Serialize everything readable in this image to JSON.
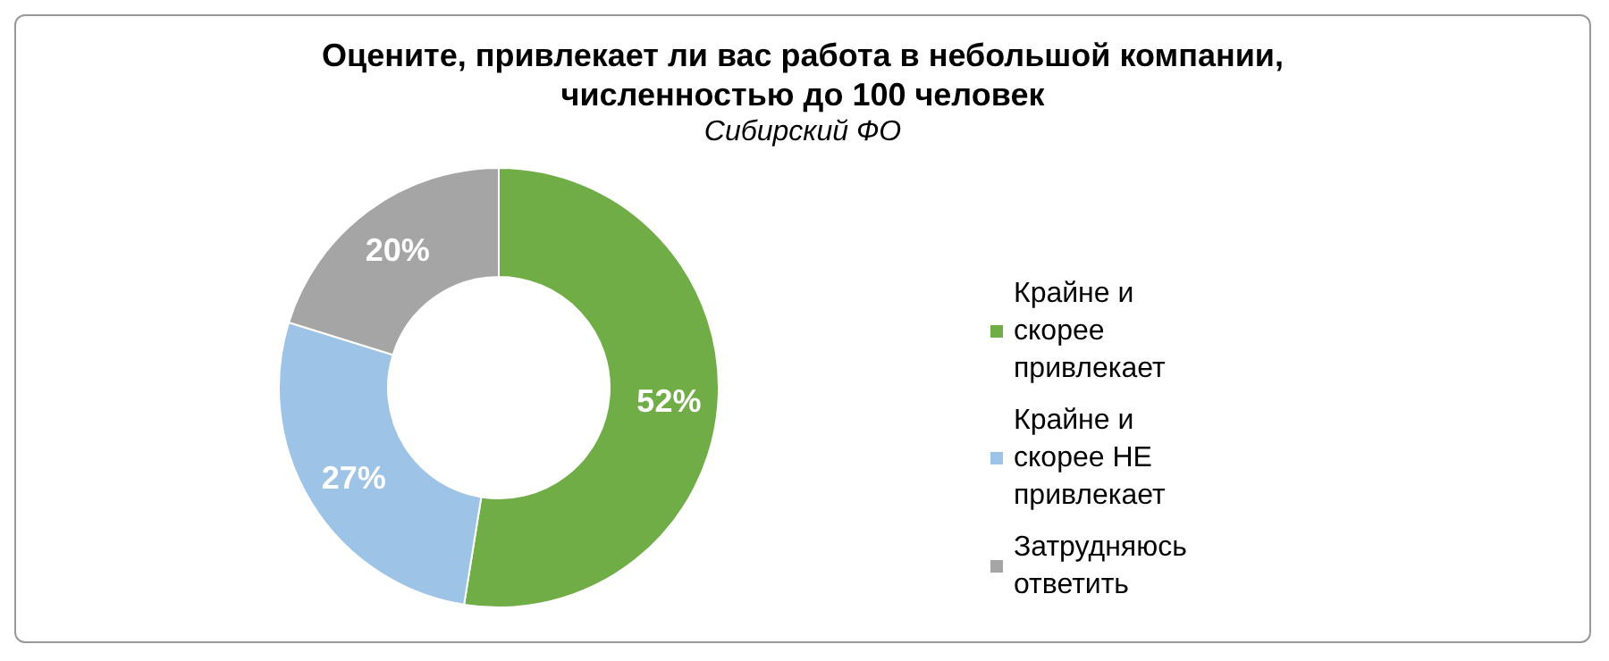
{
  "chart_data": {
    "type": "donut",
    "title": "Оцените, привлекает ли вас работа в небольшой компании,\nчисленностью до 100 человек",
    "subtitle": "Сибирский ФО",
    "categories": [
      "Крайне и скорее привлекает",
      "Крайне и скорее НЕ привлекает",
      "Затрудняюсь ответить"
    ],
    "values": [
      52,
      27,
      20
    ],
    "value_labels": [
      "52%",
      "27%",
      "20%"
    ],
    "colors": [
      "#70ad47",
      "#9dc3e6",
      "#a5a5a5"
    ],
    "legend": "right"
  }
}
